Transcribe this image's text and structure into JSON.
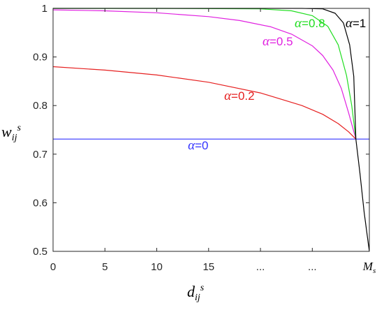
{
  "chart_data": {
    "type": "line",
    "title": "",
    "xlabel": {
      "base": "d",
      "sub": "ij",
      "sup": "s"
    },
    "ylabel": {
      "base": "w",
      "sub": "ij",
      "sup": "s"
    },
    "xlim": [
      0,
      30.5
    ],
    "ylim": [
      0.5,
      1.0
    ],
    "x_ticks": [
      {
        "value": 0,
        "label": "0"
      },
      {
        "value": 5,
        "label": "5"
      },
      {
        "value": 10,
        "label": "10"
      },
      {
        "value": 15,
        "label": "15"
      },
      {
        "value": 20,
        "label": "..."
      },
      {
        "value": 25,
        "label": "..."
      },
      {
        "value": 30.5,
        "label": "M",
        "sub": "s"
      }
    ],
    "y_ticks": [
      {
        "value": 0.5,
        "label": "0.5"
      },
      {
        "value": 0.6,
        "label": "0.6"
      },
      {
        "value": 0.7,
        "label": "0.7"
      },
      {
        "value": 0.8,
        "label": "0.8"
      },
      {
        "value": 0.9,
        "label": "0.9"
      },
      {
        "value": 1.0,
        "label": "1"
      }
    ],
    "grid": false,
    "series": [
      {
        "name": "α=0",
        "color": "#3333ff",
        "label_symbol": "α",
        "label_value": "=0",
        "label_at": [
          13.0,
          0.71
        ],
        "x": [
          0,
          30.5
        ],
        "y": [
          0.731,
          0.731
        ]
      },
      {
        "name": "α=0.2",
        "color": "#e62020",
        "label_symbol": "α",
        "label_value": "=0.2",
        "label_at": [
          16.5,
          0.812
        ],
        "x": [
          0,
          5,
          10,
          15,
          20,
          24,
          26,
          27.5,
          28.5,
          29.2
        ],
        "y": [
          0.88,
          0.873,
          0.863,
          0.848,
          0.826,
          0.8,
          0.782,
          0.763,
          0.746,
          0.731
        ]
      },
      {
        "name": "α=0.5",
        "color": "#e020e0",
        "label_symbol": "α",
        "label_value": "=0.5",
        "label_at": [
          20.2,
          0.924
        ],
        "x": [
          0,
          5,
          10,
          15,
          18,
          21,
          23,
          25,
          26,
          27,
          27.8,
          28.5,
          29.2
        ],
        "y": [
          0.997,
          0.995,
          0.991,
          0.983,
          0.975,
          0.962,
          0.947,
          0.923,
          0.903,
          0.873,
          0.835,
          0.785,
          0.731
        ]
      },
      {
        "name": "α=0.8",
        "color": "#20dd20",
        "label_symbol": "α",
        "label_value": "=0.8",
        "label_at": [
          23.3,
          0.961
        ],
        "x": [
          0,
          10,
          20,
          23,
          25,
          26.5,
          27.5,
          28.3,
          28.8,
          29.2
        ],
        "y": [
          1.0,
          1.0,
          0.999,
          0.995,
          0.985,
          0.963,
          0.925,
          0.862,
          0.8,
          0.731
        ]
      },
      {
        "name": "α=1",
        "color": "#000000",
        "label_symbol": "α",
        "label_value": "=1",
        "label_at": [
          28.2,
          0.961
        ],
        "x": [
          0,
          20,
          24,
          26,
          27.2,
          28.0,
          28.6,
          29.0,
          29.2,
          29.6,
          30.0,
          30.5
        ],
        "y": [
          1.0,
          1.0,
          1.0,
          0.999,
          0.99,
          0.97,
          0.925,
          0.86,
          0.731,
          0.66,
          0.58,
          0.5
        ]
      }
    ]
  }
}
